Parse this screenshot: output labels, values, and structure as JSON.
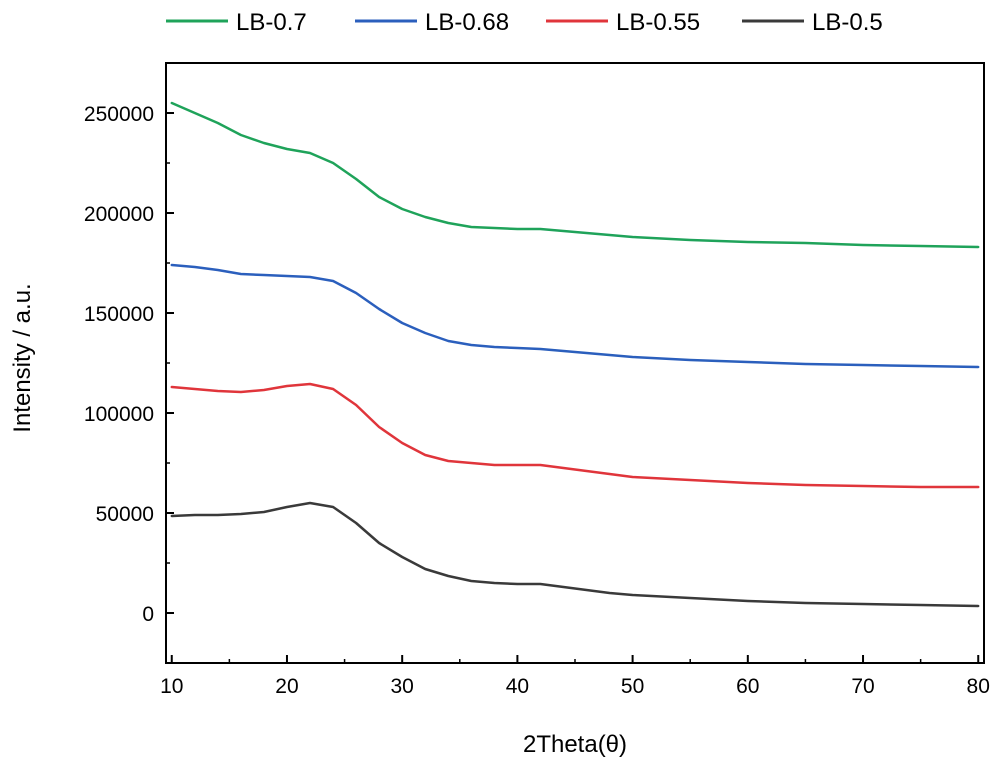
{
  "chart_data": {
    "type": "line",
    "title": "",
    "xlabel": "2Theta(θ)",
    "ylabel": "Intensity / a.u.",
    "xlim": [
      9.5,
      80.5
    ],
    "ylim": [
      -25000,
      275000
    ],
    "xticks": [
      10,
      20,
      30,
      40,
      50,
      60,
      70,
      80
    ],
    "yticks": [
      0,
      50000,
      100000,
      150000,
      200000,
      250000
    ],
    "grid": false,
    "legend": "top, outside plot",
    "series": [
      {
        "name": "LB-0.7",
        "color": "#1fa35a",
        "x": [
          10,
          12,
          14,
          16,
          18,
          20,
          22,
          24,
          26,
          28,
          30,
          32,
          34,
          36,
          38,
          40,
          42,
          44,
          46,
          48,
          50,
          55,
          60,
          65,
          70,
          75,
          80
        ],
        "y": [
          255000,
          250000,
          245000,
          239000,
          235000,
          232000,
          230000,
          225000,
          217000,
          208000,
          202000,
          198000,
          195000,
          193000,
          192500,
          192000,
          192000,
          191000,
          190000,
          189000,
          188000,
          186500,
          185500,
          185000,
          184000,
          183500,
          183000
        ]
      },
      {
        "name": "LB-0.68",
        "color": "#2b5fbd",
        "x": [
          10,
          12,
          14,
          16,
          18,
          20,
          22,
          24,
          26,
          28,
          30,
          32,
          34,
          36,
          38,
          40,
          42,
          44,
          46,
          48,
          50,
          55,
          60,
          65,
          70,
          75,
          80
        ],
        "y": [
          174000,
          173000,
          171500,
          169500,
          169000,
          168500,
          168000,
          166000,
          160000,
          152000,
          145000,
          140000,
          136000,
          134000,
          133000,
          132500,
          132000,
          131000,
          130000,
          129000,
          128000,
          126500,
          125500,
          124500,
          124000,
          123500,
          123000
        ]
      },
      {
        "name": "LB-0.55",
        "color": "#e0353b",
        "x": [
          10,
          12,
          14,
          16,
          18,
          20,
          22,
          24,
          26,
          28,
          30,
          32,
          34,
          36,
          38,
          40,
          42,
          44,
          46,
          48,
          50,
          55,
          60,
          65,
          70,
          75,
          80
        ],
        "y": [
          113000,
          112000,
          111000,
          110500,
          111500,
          113500,
          114500,
          112000,
          104000,
          93000,
          85000,
          79000,
          76000,
          75000,
          74000,
          74000,
          74000,
          72500,
          71000,
          69500,
          68000,
          66500,
          65000,
          64000,
          63500,
          63000,
          63000
        ]
      },
      {
        "name": "LB-0.5",
        "color": "#3a3a3a",
        "x": [
          10,
          12,
          14,
          16,
          18,
          20,
          22,
          24,
          26,
          28,
          30,
          32,
          34,
          36,
          38,
          40,
          42,
          44,
          46,
          48,
          50,
          55,
          60,
          65,
          70,
          75,
          80
        ],
        "y": [
          48500,
          49000,
          49000,
          49500,
          50500,
          53000,
          55000,
          53000,
          45000,
          35000,
          28000,
          22000,
          18500,
          16000,
          15000,
          14500,
          14500,
          13000,
          11500,
          10000,
          9000,
          7500,
          6000,
          5000,
          4500,
          4000,
          3500
        ]
      }
    ]
  }
}
